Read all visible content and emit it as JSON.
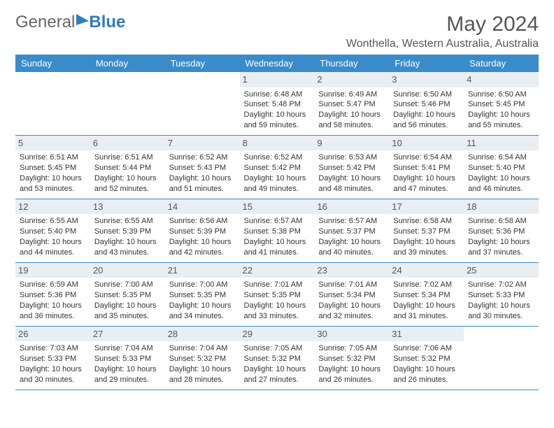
{
  "brand": {
    "part1": "General",
    "part2": "Blue"
  },
  "title": "May 2024",
  "location": "Wonthella, Western Australia, Australia",
  "colors": {
    "header_bg": "#3a8bc9",
    "header_text": "#ffffff",
    "daynum_bg": "#e9eef2",
    "rule": "#3a8bc9",
    "brand_blue": "#2e7cc0",
    "text": "#333333"
  },
  "typography": {
    "title_fontsize": 30,
    "location_fontsize": 16,
    "dayhead_fontsize": 13,
    "cell_fontsize": 11
  },
  "day_headers": [
    "Sunday",
    "Monday",
    "Tuesday",
    "Wednesday",
    "Thursday",
    "Friday",
    "Saturday"
  ],
  "weeks": [
    [
      {
        "n": "",
        "sunrise": "",
        "sunset": "",
        "daylight": ""
      },
      {
        "n": "",
        "sunrise": "",
        "sunset": "",
        "daylight": ""
      },
      {
        "n": "",
        "sunrise": "",
        "sunset": "",
        "daylight": ""
      },
      {
        "n": "1",
        "sunrise": "Sunrise: 6:48 AM",
        "sunset": "Sunset: 5:48 PM",
        "daylight": "Daylight: 10 hours and 59 minutes."
      },
      {
        "n": "2",
        "sunrise": "Sunrise: 6:49 AM",
        "sunset": "Sunset: 5:47 PM",
        "daylight": "Daylight: 10 hours and 58 minutes."
      },
      {
        "n": "3",
        "sunrise": "Sunrise: 6:50 AM",
        "sunset": "Sunset: 5:46 PM",
        "daylight": "Daylight: 10 hours and 56 minutes."
      },
      {
        "n": "4",
        "sunrise": "Sunrise: 6:50 AM",
        "sunset": "Sunset: 5:45 PM",
        "daylight": "Daylight: 10 hours and 55 minutes."
      }
    ],
    [
      {
        "n": "5",
        "sunrise": "Sunrise: 6:51 AM",
        "sunset": "Sunset: 5:45 PM",
        "daylight": "Daylight: 10 hours and 53 minutes."
      },
      {
        "n": "6",
        "sunrise": "Sunrise: 6:51 AM",
        "sunset": "Sunset: 5:44 PM",
        "daylight": "Daylight: 10 hours and 52 minutes."
      },
      {
        "n": "7",
        "sunrise": "Sunrise: 6:52 AM",
        "sunset": "Sunset: 5:43 PM",
        "daylight": "Daylight: 10 hours and 51 minutes."
      },
      {
        "n": "8",
        "sunrise": "Sunrise: 6:52 AM",
        "sunset": "Sunset: 5:42 PM",
        "daylight": "Daylight: 10 hours and 49 minutes."
      },
      {
        "n": "9",
        "sunrise": "Sunrise: 6:53 AM",
        "sunset": "Sunset: 5:42 PM",
        "daylight": "Daylight: 10 hours and 48 minutes."
      },
      {
        "n": "10",
        "sunrise": "Sunrise: 6:54 AM",
        "sunset": "Sunset: 5:41 PM",
        "daylight": "Daylight: 10 hours and 47 minutes."
      },
      {
        "n": "11",
        "sunrise": "Sunrise: 6:54 AM",
        "sunset": "Sunset: 5:40 PM",
        "daylight": "Daylight: 10 hours and 46 minutes."
      }
    ],
    [
      {
        "n": "12",
        "sunrise": "Sunrise: 6:55 AM",
        "sunset": "Sunset: 5:40 PM",
        "daylight": "Daylight: 10 hours and 44 minutes."
      },
      {
        "n": "13",
        "sunrise": "Sunrise: 6:55 AM",
        "sunset": "Sunset: 5:39 PM",
        "daylight": "Daylight: 10 hours and 43 minutes."
      },
      {
        "n": "14",
        "sunrise": "Sunrise: 6:56 AM",
        "sunset": "Sunset: 5:39 PM",
        "daylight": "Daylight: 10 hours and 42 minutes."
      },
      {
        "n": "15",
        "sunrise": "Sunrise: 6:57 AM",
        "sunset": "Sunset: 5:38 PM",
        "daylight": "Daylight: 10 hours and 41 minutes."
      },
      {
        "n": "16",
        "sunrise": "Sunrise: 6:57 AM",
        "sunset": "Sunset: 5:37 PM",
        "daylight": "Daylight: 10 hours and 40 minutes."
      },
      {
        "n": "17",
        "sunrise": "Sunrise: 6:58 AM",
        "sunset": "Sunset: 5:37 PM",
        "daylight": "Daylight: 10 hours and 39 minutes."
      },
      {
        "n": "18",
        "sunrise": "Sunrise: 6:58 AM",
        "sunset": "Sunset: 5:36 PM",
        "daylight": "Daylight: 10 hours and 37 minutes."
      }
    ],
    [
      {
        "n": "19",
        "sunrise": "Sunrise: 6:59 AM",
        "sunset": "Sunset: 5:36 PM",
        "daylight": "Daylight: 10 hours and 36 minutes."
      },
      {
        "n": "20",
        "sunrise": "Sunrise: 7:00 AM",
        "sunset": "Sunset: 5:35 PM",
        "daylight": "Daylight: 10 hours and 35 minutes."
      },
      {
        "n": "21",
        "sunrise": "Sunrise: 7:00 AM",
        "sunset": "Sunset: 5:35 PM",
        "daylight": "Daylight: 10 hours and 34 minutes."
      },
      {
        "n": "22",
        "sunrise": "Sunrise: 7:01 AM",
        "sunset": "Sunset: 5:35 PM",
        "daylight": "Daylight: 10 hours and 33 minutes."
      },
      {
        "n": "23",
        "sunrise": "Sunrise: 7:01 AM",
        "sunset": "Sunset: 5:34 PM",
        "daylight": "Daylight: 10 hours and 32 minutes."
      },
      {
        "n": "24",
        "sunrise": "Sunrise: 7:02 AM",
        "sunset": "Sunset: 5:34 PM",
        "daylight": "Daylight: 10 hours and 31 minutes."
      },
      {
        "n": "25",
        "sunrise": "Sunrise: 7:02 AM",
        "sunset": "Sunset: 5:33 PM",
        "daylight": "Daylight: 10 hours and 30 minutes."
      }
    ],
    [
      {
        "n": "26",
        "sunrise": "Sunrise: 7:03 AM",
        "sunset": "Sunset: 5:33 PM",
        "daylight": "Daylight: 10 hours and 30 minutes."
      },
      {
        "n": "27",
        "sunrise": "Sunrise: 7:04 AM",
        "sunset": "Sunset: 5:33 PM",
        "daylight": "Daylight: 10 hours and 29 minutes."
      },
      {
        "n": "28",
        "sunrise": "Sunrise: 7:04 AM",
        "sunset": "Sunset: 5:32 PM",
        "daylight": "Daylight: 10 hours and 28 minutes."
      },
      {
        "n": "29",
        "sunrise": "Sunrise: 7:05 AM",
        "sunset": "Sunset: 5:32 PM",
        "daylight": "Daylight: 10 hours and 27 minutes."
      },
      {
        "n": "30",
        "sunrise": "Sunrise: 7:05 AM",
        "sunset": "Sunset: 5:32 PM",
        "daylight": "Daylight: 10 hours and 26 minutes."
      },
      {
        "n": "31",
        "sunrise": "Sunrise: 7:06 AM",
        "sunset": "Sunset: 5:32 PM",
        "daylight": "Daylight: 10 hours and 26 minutes."
      },
      {
        "n": "",
        "sunrise": "",
        "sunset": "",
        "daylight": ""
      }
    ]
  ]
}
